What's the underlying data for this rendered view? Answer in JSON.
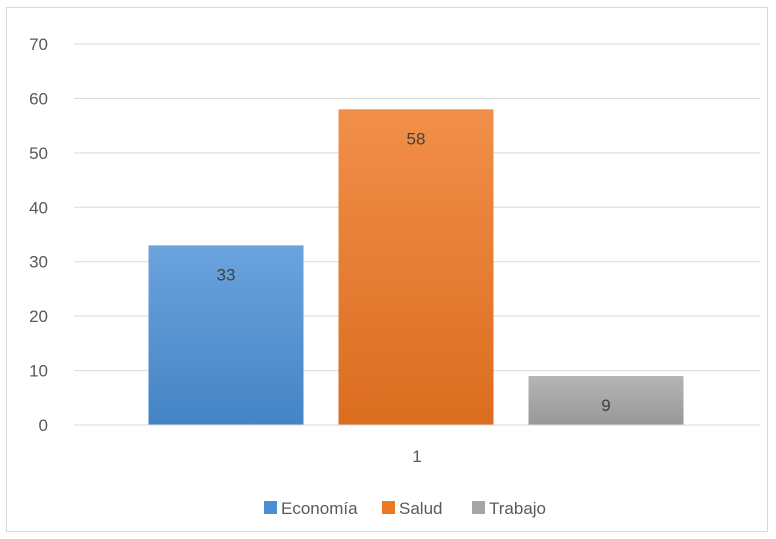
{
  "chart_data": {
    "type": "bar",
    "categories": [
      "1"
    ],
    "series": [
      {
        "name": "Economía",
        "values": [
          33
        ],
        "color": "#4a8fd6"
      },
      {
        "name": "Salud",
        "values": [
          58
        ],
        "color": "#ee7722"
      },
      {
        "name": "Trabajo",
        "values": [
          9
        ],
        "color": "#a5a5a5"
      }
    ],
    "ylim": [
      0,
      70
    ],
    "yticks": [
      0,
      10,
      20,
      30,
      40,
      50,
      60,
      70
    ],
    "grid": true,
    "legend": "bottom",
    "data_labels": true
  }
}
